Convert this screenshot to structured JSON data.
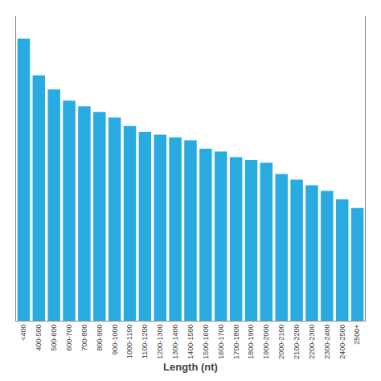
{
  "chart_data": {
    "type": "bar",
    "categories": [
      "<400",
      "400-500",
      "500-600",
      "600-700",
      "700-800",
      "800-900",
      "900-1000",
      "1000-1100",
      "1100-1200",
      "1200-1300",
      "1300-1400",
      "1400-1500",
      "1500-1600",
      "1600-1700",
      "1700-1800",
      "1800-1900",
      "1900-2000",
      "2000-2100",
      "2100-2200",
      "2200-2300",
      "2300-2400",
      "2400-2500",
      "2500+"
    ],
    "values": [
      100,
      87,
      82,
      78,
      76,
      74,
      72,
      69,
      67,
      66,
      65,
      64,
      61,
      60,
      58,
      57,
      56,
      52,
      50,
      48,
      46,
      43,
      40
    ],
    "color": "#29abe2",
    "xlabel": "Length (nt)",
    "ylim": [
      0,
      108
    ],
    "tick_labels": "x",
    "grid": false
  }
}
